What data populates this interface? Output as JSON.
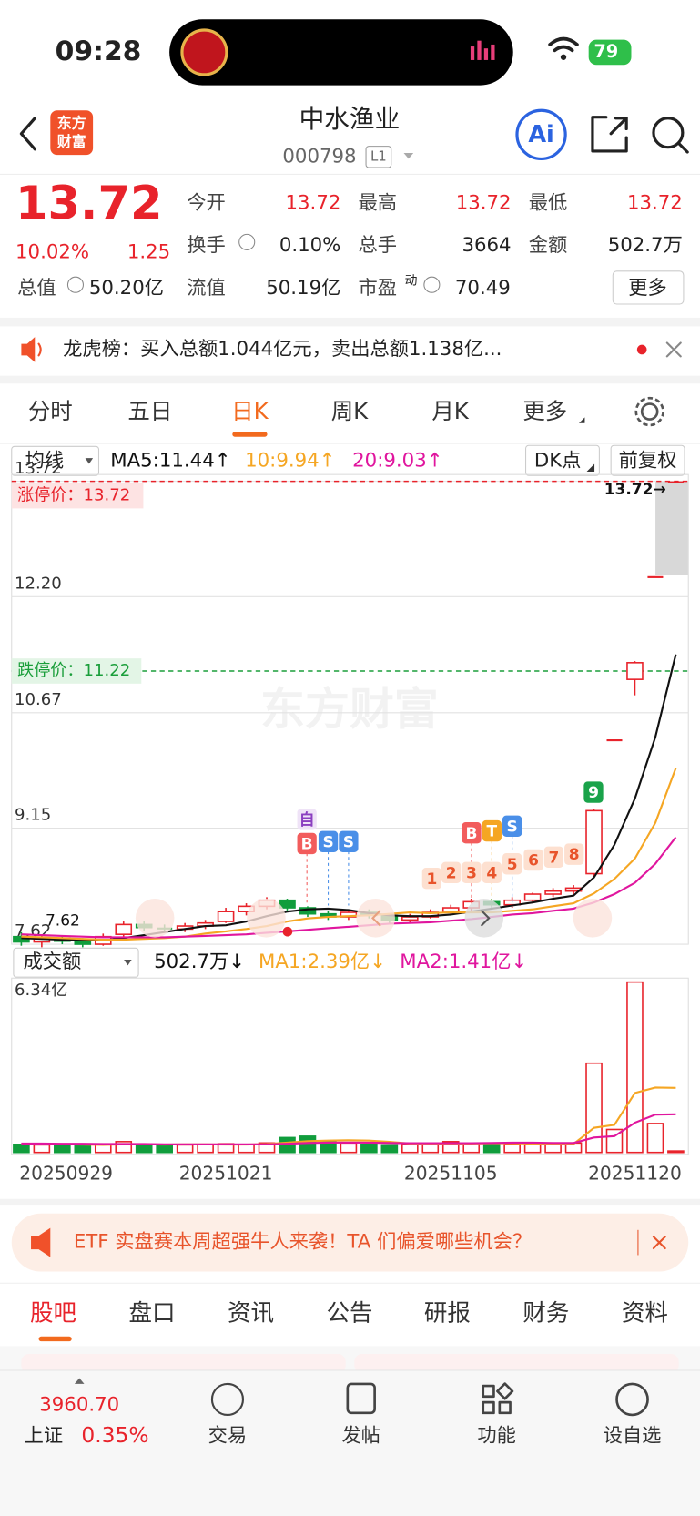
{
  "status_bar": {
    "time": "09:28",
    "battery": "79"
  },
  "header": {
    "logo": [
      "东方",
      "财富"
    ],
    "title": "中水渔业",
    "code": "000798",
    "level": "L1",
    "ai": "Ai"
  },
  "quote": {
    "price": "13.72",
    "change_pct": "10.02%",
    "change": "1.25",
    "fields": [
      {
        "label": "今开",
        "value": "13.72"
      },
      {
        "label": "最高",
        "value": "13.72"
      },
      {
        "label": "最低",
        "value": "13.72"
      },
      {
        "label": "换手",
        "value": "0.10%"
      },
      {
        "label": "总手",
        "value": "3664"
      },
      {
        "label": "金额",
        "value": "502.7万"
      },
      {
        "label": "总值",
        "value": "50.20亿"
      },
      {
        "label": "流值",
        "value": "50.19亿"
      },
      {
        "label": "市盈",
        "sup": "动",
        "value": "70.49"
      }
    ],
    "more": "更多"
  },
  "notice": "龙虎榜：买入总额1.044亿元，卖出总额1.138亿...",
  "tabs": [
    "分时",
    "五日",
    "日K",
    "周K",
    "月K",
    "更多"
  ],
  "kline": {
    "type": "candlestick",
    "ma_selector": "均线",
    "ma_labels": [
      "MA5:11.44↑",
      "10:9.94↑",
      "20:9.03↑"
    ],
    "dk": "DK点",
    "adjust": "前复权",
    "limit_up": 13.72,
    "limit_up_label": "涨停价：13.72",
    "limit_down": 11.22,
    "limit_down_label": "跌停价：11.22",
    "last_label": "13.72→",
    "min_label": "7.62",
    "watermark": "东方财富",
    "ylim": [
      7.62,
      13.72
    ],
    "yticks": [
      7.62,
      9.15,
      10.67,
      {
        "value": 12.2,
        "label": "12.20"
      },
      13.72
    ],
    "categories": [
      "20250929",
      null,
      null,
      null,
      null,
      null,
      null,
      null,
      null,
      null,
      "20251021",
      null,
      null,
      null,
      null,
      null,
      null,
      null,
      null,
      null,
      null,
      "20251105",
      null,
      null,
      null,
      null,
      null,
      null,
      null,
      null,
      "20251120",
      null,
      null
    ],
    "ohlc": [
      [
        7.72,
        7.78,
        7.6,
        7.65
      ],
      [
        7.65,
        7.75,
        7.58,
        7.7
      ],
      [
        7.7,
        7.74,
        7.62,
        7.66
      ],
      [
        7.66,
        7.7,
        7.58,
        7.62
      ],
      [
        7.62,
        7.76,
        7.6,
        7.72
      ],
      [
        7.75,
        7.92,
        7.72,
        7.88
      ],
      [
        7.88,
        7.92,
        7.8,
        7.84
      ],
      [
        7.84,
        7.88,
        7.78,
        7.82
      ],
      [
        7.82,
        7.9,
        7.78,
        7.86
      ],
      [
        7.86,
        7.94,
        7.82,
        7.9
      ],
      [
        7.92,
        8.1,
        7.9,
        8.05
      ],
      [
        8.05,
        8.16,
        8,
        8.12
      ],
      [
        8.12,
        8.24,
        8.08,
        8.2
      ],
      [
        8.2,
        8.22,
        8.05,
        8.1
      ],
      [
        8.1,
        8.12,
        7.98,
        8.02
      ],
      [
        8.02,
        8.06,
        7.94,
        7.98
      ],
      [
        7.98,
        8.08,
        7.94,
        8.04
      ],
      [
        8.04,
        8.08,
        7.96,
        8
      ],
      [
        8,
        8.02,
        7.9,
        7.94
      ],
      [
        7.94,
        8.02,
        7.9,
        7.98
      ],
      [
        7.98,
        8.08,
        7.96,
        8.04
      ],
      [
        8.04,
        8.14,
        8,
        8.1
      ],
      [
        8.1,
        8.22,
        8.06,
        8.18
      ],
      [
        8.18,
        8.22,
        8.1,
        8.14
      ],
      [
        8.14,
        8.24,
        8.1,
        8.2
      ],
      [
        8.2,
        8.3,
        8.16,
        8.28
      ],
      [
        8.28,
        8.36,
        8.24,
        8.32
      ],
      [
        8.32,
        8.4,
        8.28,
        8.36
      ],
      [
        8.55,
        9.4,
        8.5,
        9.38
      ],
      [
        10.32,
        10.32,
        10.32,
        10.32
      ],
      [
        11.11,
        11.35,
        10.9,
        11.33
      ],
      [
        12.47,
        12.47,
        12.47,
        12.47
      ],
      [
        13.72,
        13.72,
        13.72,
        13.72
      ]
    ],
    "ma": [
      {
        "color": "#111111",
        "values": [
          7.7,
          7.69,
          7.68,
          7.67,
          7.67,
          7.7,
          7.74,
          7.78,
          7.82,
          7.86,
          7.87,
          7.92,
          7.99,
          8.05,
          8.08,
          8.09,
          8.07,
          8.03,
          8,
          7.99,
          7.99,
          8.01,
          8.05,
          8.09,
          8.13,
          8.17,
          8.22,
          8.26,
          8.5,
          8.93,
          9.54,
          10.35,
          11.44
        ]
      },
      {
        "color": "#f5a623",
        "values": [
          7.72,
          7.71,
          7.7,
          7.69,
          7.68,
          7.68,
          7.69,
          7.7,
          7.72,
          7.76,
          7.79,
          7.82,
          7.86,
          7.92,
          7.96,
          7.98,
          7.99,
          8,
          8.02,
          8.04,
          8.03,
          8.04,
          8.04,
          8.04,
          8.06,
          8.08,
          8.12,
          8.16,
          8.29,
          8.48,
          8.75,
          9.22,
          9.94
        ]
      },
      {
        "color": "#e0169e",
        "values": [
          7.75,
          7.74,
          7.73,
          7.72,
          7.71,
          7.71,
          7.71,
          7.71,
          7.72,
          7.73,
          7.74,
          7.75,
          7.77,
          7.79,
          7.81,
          7.83,
          7.85,
          7.87,
          7.89,
          7.9,
          7.91,
          7.93,
          7.95,
          7.98,
          8.01,
          8.03,
          8.06,
          8.09,
          8.17,
          8.28,
          8.43,
          8.68,
          9.03
        ]
      }
    ],
    "signals": [
      "自",
      "B",
      "S",
      "S",
      "B",
      "T",
      "S",
      "1",
      "2",
      "3",
      "4",
      "5",
      "6",
      "7",
      "8",
      "9"
    ]
  },
  "volume": {
    "selector": "成交额",
    "labels": [
      "502.7万↓",
      "MA1:2.39亿↓",
      "MA2:1.41亿↓"
    ],
    "top_label": "6.34亿",
    "ylim": [
      0,
      6.34
    ],
    "values": [
      0.3,
      0.28,
      0.28,
      0.25,
      0.3,
      0.4,
      0.25,
      0.25,
      0.28,
      0.3,
      0.32,
      0.3,
      0.35,
      0.55,
      0.6,
      0.4,
      0.35,
      0.3,
      0.28,
      0.3,
      0.32,
      0.4,
      0.35,
      0.32,
      0.3,
      0.3,
      0.3,
      0.35,
      3.3,
      0.85,
      6.3,
      1.07,
      0.05027
    ],
    "ma": [
      {
        "color": "#f5a623",
        "values": [
          0.32,
          0.31,
          0.3,
          0.29,
          0.28,
          0.3,
          0.3,
          0.29,
          0.3,
          0.3,
          0.29,
          0.29,
          0.31,
          0.36,
          0.42,
          0.44,
          0.45,
          0.44,
          0.39,
          0.33,
          0.31,
          0.32,
          0.33,
          0.34,
          0.34,
          0.33,
          0.32,
          0.31,
          0.91,
          1.02,
          2.2,
          2.4,
          2.39
        ]
      },
      {
        "color": "#e0169e",
        "values": [
          0.33,
          0.33,
          0.32,
          0.32,
          0.31,
          0.31,
          0.31,
          0.3,
          0.3,
          0.3,
          0.3,
          0.3,
          0.3,
          0.32,
          0.35,
          0.36,
          0.37,
          0.36,
          0.35,
          0.34,
          0.34,
          0.34,
          0.34,
          0.35,
          0.36,
          0.36,
          0.35,
          0.35,
          0.55,
          0.6,
          1.1,
          1.4,
          1.41
        ]
      }
    ]
  },
  "banner": "ETF 实盘赛本周超强牛人来袭！TA 们偏爱哪些机会？",
  "sub_tabs": [
    "股吧",
    "盘口",
    "资讯",
    "公告",
    "研报",
    "财务",
    "资料"
  ],
  "bottom": {
    "index_value": "3960.70",
    "index_name": "上证",
    "index_change": "0.35%",
    "nav": [
      "交易",
      "发帖",
      "功能",
      "设自选"
    ]
  }
}
